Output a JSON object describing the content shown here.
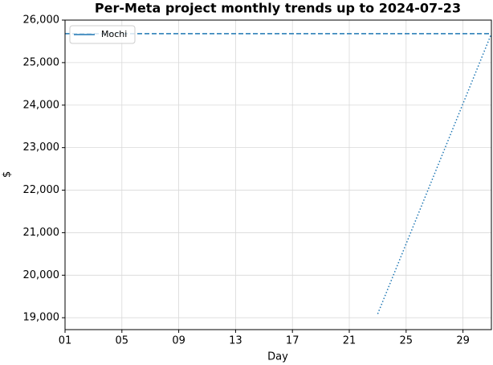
{
  "chart_data": {
    "type": "line",
    "title": "Per-Meta project monthly trends up to 2024-07-23",
    "x_label": "Day",
    "y_label": "$",
    "series": [
      {
        "name": "Mochi",
        "color": "#1f77b4",
        "x": [
          23
        ],
        "values": [
          19090
        ]
      }
    ],
    "reference_line": {
      "y": 25680,
      "color": "#1f77b4",
      "style": "dashed"
    },
    "projection": {
      "x": [
        23,
        31
      ],
      "values": [
        19090,
        25680
      ],
      "color": "#1f77b4",
      "style": "dotted"
    },
    "xlim": [
      1,
      31
    ],
    "ylim": [
      18720,
      26000
    ],
    "xticks": [
      {
        "value": 1,
        "label": "01"
      },
      {
        "value": 5,
        "label": "05"
      },
      {
        "value": 9,
        "label": "09"
      },
      {
        "value": 13,
        "label": "13"
      },
      {
        "value": 17,
        "label": "17"
      },
      {
        "value": 21,
        "label": "21"
      },
      {
        "value": 25,
        "label": "25"
      },
      {
        "value": 29,
        "label": "29"
      }
    ],
    "yticks": [
      {
        "value": 19000,
        "label": "19,000"
      },
      {
        "value": 20000,
        "label": "20,000"
      },
      {
        "value": 21000,
        "label": "21,000"
      },
      {
        "value": 22000,
        "label": "22,000"
      },
      {
        "value": 23000,
        "label": "23,000"
      },
      {
        "value": 24000,
        "label": "24,000"
      },
      {
        "value": 25000,
        "label": "25,000"
      },
      {
        "value": 26000,
        "label": "26,000"
      }
    ],
    "grid": true,
    "legend": "upper left"
  }
}
